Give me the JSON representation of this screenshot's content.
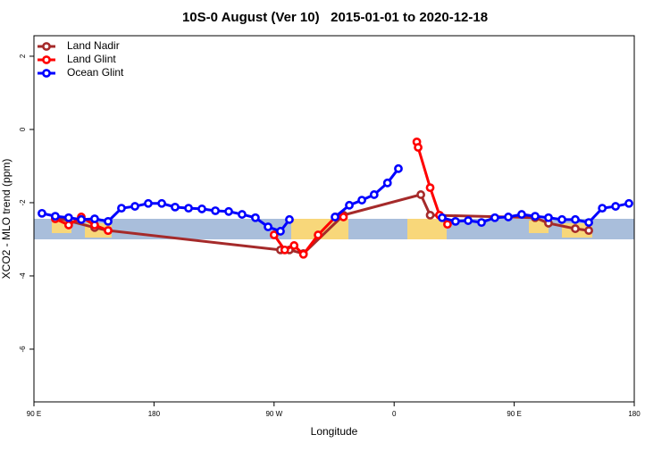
{
  "chart_data": {
    "type": "line",
    "title": "10S-0 August (Ver 10)   2015-01-01 to 2020-12-18",
    "x_label": "Longitude",
    "y_label": "XCO2 - MLO trend (ppm)",
    "xlim": [
      90,
      540
    ],
    "ylim": [
      -7.44,
      2.56
    ],
    "xticks": [
      {
        "value": 90,
        "label": "90 E"
      },
      {
        "value": 180,
        "label": "180"
      },
      {
        "value": 270,
        "label": "90 W"
      },
      {
        "value": 360,
        "label": "0"
      },
      {
        "value": 450,
        "label": "90 E"
      },
      {
        "value": 540,
        "label": "180"
      }
    ],
    "yticks": [
      2,
      0,
      -2,
      -4,
      -6
    ],
    "legend": "top-left",
    "series": [
      {
        "name": "Land Nadir",
        "color": "#a52a2a",
        "x": [
          106,
          135.5,
          145.6,
          274.8,
          281.5,
          292,
          322,
          380,
          387,
          465.7,
          475.7,
          495.8,
          505.9
        ],
        "values": [
          -2.4,
          -2.68,
          -2.76,
          -3.29,
          -3.29,
          -3.39,
          -2.34,
          -1.78,
          -2.34,
          -2.41,
          -2.56,
          -2.71,
          -2.76
        ]
      },
      {
        "name": "Land Glint",
        "color": "#ff0000",
        "x": [
          106,
          116,
          125.5,
          135.5,
          145.6,
          null,
          270,
          278,
          285,
          292,
          303,
          316,
          322,
          null,
          377,
          378,
          387,
          394,
          400
        ],
        "values": [
          -2.44,
          -2.61,
          -2.39,
          -2.61,
          -2.76,
          null,
          -2.88,
          -3.29,
          -3.17,
          -3.41,
          -2.88,
          -2.39,
          -2.39,
          null,
          -0.34,
          -0.49,
          -1.59,
          -2.34,
          -2.59
        ]
      },
      {
        "name": "Ocean Glint",
        "color": "#0000ff",
        "x": [
          96,
          106,
          116,
          125.5,
          135.5,
          145.6,
          155.6,
          165.7,
          175.7,
          185.8,
          195.8,
          205.9,
          215.9,
          226,
          236,
          246,
          256,
          265.5,
          274.8,
          281.5,
          null,
          315.7,
          326.4,
          335.8,
          345,
          355,
          363.2,
          null,
          396,
          406,
          415.5,
          425.5,
          435.5,
          445.6,
          455.6,
          465.7,
          475.7,
          485.8,
          495.8,
          505.9,
          516,
          526,
          536
        ],
        "values": [
          -2.29,
          -2.37,
          -2.41,
          -2.46,
          -2.44,
          -2.51,
          -2.15,
          -2.1,
          -2.02,
          -2.02,
          -2.12,
          -2.15,
          -2.17,
          -2.22,
          -2.24,
          -2.32,
          -2.41,
          -2.66,
          -2.78,
          -2.46,
          null,
          -2.39,
          -2.07,
          -1.93,
          -1.78,
          -1.46,
          -1.07,
          null,
          -2.41,
          -2.51,
          -2.49,
          -2.54,
          -2.41,
          -2.39,
          -2.32,
          -2.37,
          -2.41,
          -2.46,
          -2.46,
          -2.54,
          -2.15,
          -2.1,
          -2.02
        ]
      }
    ]
  }
}
